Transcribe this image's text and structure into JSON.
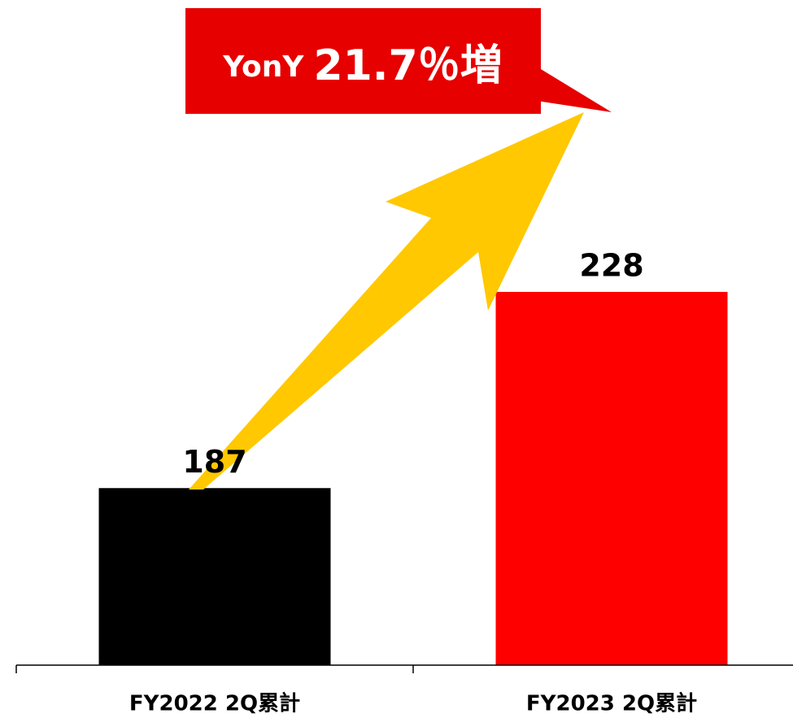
{
  "chart_data": {
    "type": "bar",
    "categories": [
      "FY2022 2Q累計",
      "FY2023 2Q累計"
    ],
    "values": [
      187,
      228
    ],
    "colors": [
      "#000000",
      "#ff0000"
    ],
    "ylim": [
      150,
      289
    ],
    "annotation": [
      "YonY",
      "21.7％増"
    ]
  }
}
